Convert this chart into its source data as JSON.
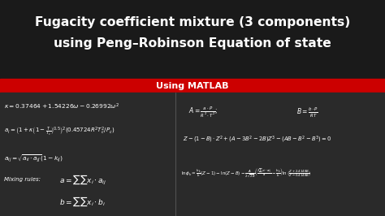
{
  "title_line1": "Fugacity coefficient mixture (3 components)",
  "title_line2": "using Peng–Robinson Equation of state",
  "subtitle": "Using MATLAB",
  "bg_color": "#1a1a1a",
  "title_bg": "#1a1a1a",
  "subtitle_bg": "#cc0000",
  "content_bg": "#2a2a2a",
  "text_color": "#ffffff",
  "subtitle_text_color": "#ffffff"
}
